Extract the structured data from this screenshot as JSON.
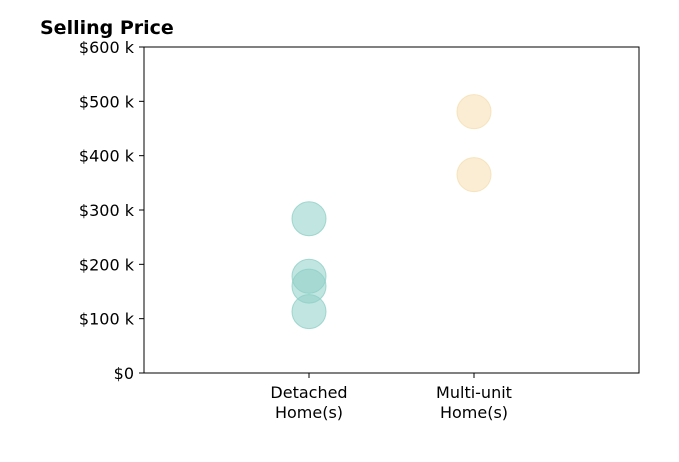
{
  "chart_data": {
    "type": "scatter",
    "title": "Selling Price",
    "xlabel": "",
    "ylabel": "",
    "categories": [
      {
        "line1": "Detached",
        "line2": "Home(s)"
      },
      {
        "line1": "Multi-unit",
        "line2": "Home(s)"
      }
    ],
    "ylim": [
      0,
      600000
    ],
    "yticks": [
      {
        "value": 0,
        "label": "$0"
      },
      {
        "value": 100000,
        "label": "$100 k"
      },
      {
        "value": 200000,
        "label": "$200 k"
      },
      {
        "value": 300000,
        "label": "$300 k"
      },
      {
        "value": 400000,
        "label": "$400 k"
      },
      {
        "value": 500000,
        "label": "$500 k"
      },
      {
        "value": 600000,
        "label": "$600 k"
      }
    ],
    "grid": false,
    "series": [
      {
        "category": "Detached Home(s)",
        "values": [
          113000,
          160000,
          178000,
          284000
        ],
        "color": "#8ecfc7"
      },
      {
        "category": "Multi-unit Home(s)",
        "values": [
          365000,
          481000
        ],
        "color": "#f5deb0"
      }
    ]
  }
}
